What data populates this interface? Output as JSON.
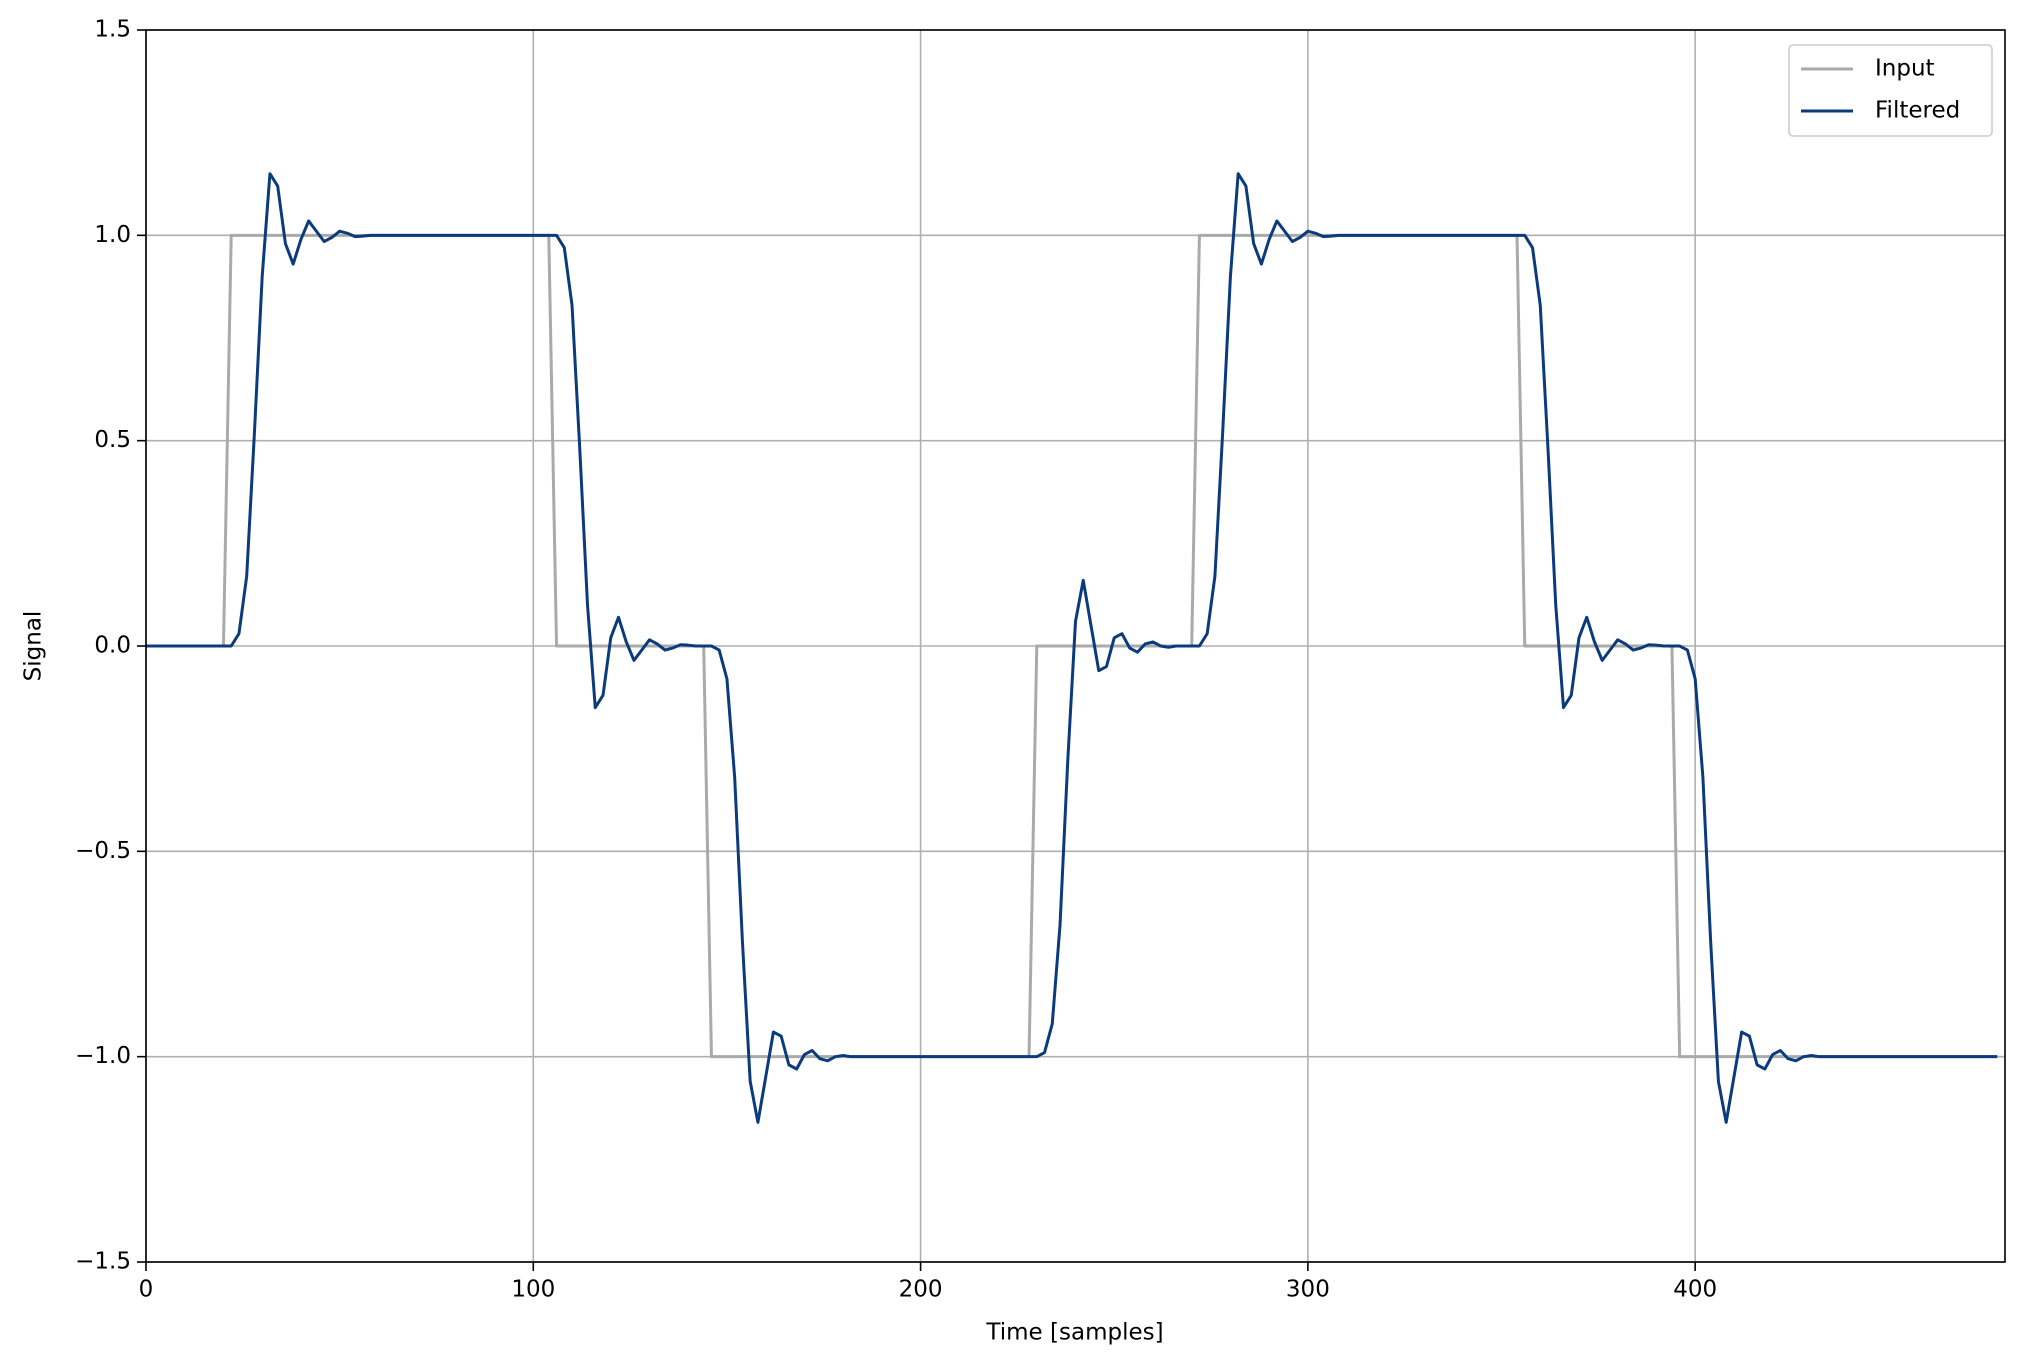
{
  "chart_data": {
    "type": "line",
    "xlabel": "Time [samples]",
    "ylabel": "Signal",
    "xlim": [
      0,
      480
    ],
    "xticks": [
      0,
      100,
      200,
      300,
      400
    ],
    "ylim": [
      -1.5,
      1.5
    ],
    "yticks": [
      {
        "value": -1.5,
        "label": "−1.5"
      },
      {
        "value": -1,
        "label": "−1.0"
      },
      {
        "value": -0.5,
        "label": "−0.5"
      },
      {
        "value": 0,
        "label": "0.0"
      },
      0.5,
      {
        "value": 1,
        "label": "1.0"
      },
      1.5
    ],
    "grid": true,
    "legend": "upper-right",
    "x": [
      0,
      2,
      4,
      6,
      8,
      10,
      12,
      14,
      16,
      18,
      20,
      22,
      24,
      26,
      28,
      30,
      32,
      34,
      36,
      38,
      40,
      42,
      44,
      46,
      48,
      50,
      52,
      54,
      56,
      58,
      60,
      62,
      64,
      66,
      68,
      70,
      72,
      74,
      76,
      78,
      80,
      82,
      84,
      86,
      88,
      90,
      92,
      94,
      96,
      98,
      100,
      102,
      104,
      106,
      108,
      110,
      112,
      114,
      116,
      118,
      120,
      122,
      124,
      126,
      128,
      130,
      132,
      134,
      136,
      138,
      140,
      142,
      144,
      146,
      148,
      150,
      152,
      154,
      156,
      158,
      160,
      162,
      164,
      166,
      168,
      170,
      172,
      174,
      176,
      178,
      180,
      182,
      184,
      186,
      188,
      190,
      192,
      194,
      196,
      198,
      200,
      202,
      204,
      206,
      208,
      210,
      212,
      214,
      216,
      218,
      220,
      222,
      224,
      226,
      228,
      230,
      232,
      234,
      236,
      238,
      240,
      242,
      244,
      246,
      248,
      250,
      252,
      254,
      256,
      258,
      260,
      262,
      264,
      266,
      268,
      270,
      272,
      274,
      276,
      278,
      280,
      282,
      284,
      286,
      288,
      290,
      292,
      294,
      296,
      298,
      300,
      302,
      304,
      306,
      308,
      310,
      312,
      314,
      316,
      318,
      320,
      322,
      324,
      326,
      328,
      330,
      332,
      334,
      336,
      338,
      340,
      342,
      344,
      346,
      348,
      350,
      352,
      354,
      356,
      358,
      360,
      362,
      364,
      366,
      368,
      370,
      372,
      374,
      376,
      378,
      380,
      382,
      384,
      386,
      388,
      390,
      392,
      394,
      396,
      398,
      400,
      402,
      404,
      406,
      408,
      410,
      412,
      414,
      416,
      418,
      420,
      422,
      424,
      426,
      428,
      430,
      432,
      434,
      436,
      438,
      440,
      442,
      444,
      446,
      448,
      450,
      452,
      454,
      456,
      458,
      460,
      462,
      464,
      466,
      468,
      470,
      472,
      474,
      476,
      478
    ],
    "series": [
      {
        "name": "Input",
        "color": "#aaaaaa",
        "values": [
          0,
          0,
          0,
          0,
          0,
          0,
          0,
          0,
          0,
          0,
          0,
          1,
          1,
          1,
          1,
          1,
          1,
          1,
          1,
          1,
          1,
          1,
          1,
          1,
          1,
          1,
          1,
          1,
          1,
          1,
          1,
          1,
          1,
          1,
          1,
          1,
          1,
          1,
          1,
          1,
          1,
          1,
          1,
          1,
          1,
          1,
          1,
          1,
          1,
          1,
          1,
          1,
          1,
          0,
          0,
          0,
          0,
          0,
          0,
          0,
          0,
          0,
          0,
          0,
          0,
          0,
          0,
          0,
          0,
          0,
          0,
          0,
          0,
          -1,
          -1,
          -1,
          -1,
          -1,
          -1,
          -1,
          -1,
          -1,
          -1,
          -1,
          -1,
          -1,
          -1,
          -1,
          -1,
          -1,
          -1,
          -1,
          -1,
          -1,
          -1,
          -1,
          -1,
          -1,
          -1,
          -1,
          -1,
          -1,
          -1,
          -1,
          -1,
          -1,
          -1,
          -1,
          -1,
          -1,
          -1,
          -1,
          -1,
          -1,
          -1,
          0,
          0,
          0,
          0,
          0,
          0,
          0,
          0,
          0,
          0,
          0,
          0,
          0,
          0,
          0,
          0,
          0,
          0,
          0,
          0,
          0,
          1,
          1,
          1,
          1,
          1,
          1,
          1,
          1,
          1,
          1,
          1,
          1,
          1,
          1,
          1,
          1,
          1,
          1,
          1,
          1,
          1,
          1,
          1,
          1,
          1,
          1,
          1,
          1,
          1,
          1,
          1,
          1,
          1,
          1,
          1,
          1,
          1,
          1,
          1,
          1,
          1,
          1,
          0,
          0,
          0,
          0,
          0,
          0,
          0,
          0,
          0,
          0,
          0,
          0,
          0,
          0,
          0,
          0,
          0,
          0,
          0,
          0,
          -1,
          -1,
          -1,
          -1,
          -1,
          -1,
          -1,
          -1,
          -1,
          -1,
          -1,
          -1,
          -1,
          -1,
          -1,
          -1,
          -1,
          -1,
          -1,
          -1,
          -1,
          -1,
          -1,
          -1,
          -1,
          -1,
          -1,
          -1,
          -1,
          -1,
          -1,
          -1,
          -1,
          -1,
          -1,
          -1,
          -1,
          -1,
          -1,
          -1,
          -1,
          -1
        ]
      },
      {
        "name": "Filtered",
        "color": "#0b3b7c",
        "values": [
          0,
          0,
          0,
          0,
          0,
          0,
          0,
          0,
          0,
          0,
          0,
          0,
          0.03,
          0.17,
          0.52,
          0.9,
          1.15,
          1.12,
          0.98,
          0.93,
          0.99,
          1.035,
          1.01,
          0.985,
          0.995,
          1.01,
          1.005,
          0.997,
          0.998,
          1,
          1,
          1,
          1,
          1,
          1,
          1,
          1,
          1,
          1,
          1,
          1,
          1,
          1,
          1,
          1,
          1,
          1,
          1,
          1,
          1,
          1,
          1,
          1,
          1,
          0.97,
          0.83,
          0.48,
          0.1,
          -0.15,
          -0.12,
          0.02,
          0.07,
          0.01,
          -0.035,
          -0.01,
          0.015,
          0.005,
          -0.01,
          -0.005,
          0.003,
          0.002,
          0,
          0,
          0,
          -0.01,
          -0.08,
          -0.32,
          -0.72,
          -1.06,
          -1.16,
          -1.05,
          -0.94,
          -0.95,
          -1.02,
          -1.03,
          -0.995,
          -0.985,
          -1.005,
          -1.01,
          -1,
          -0.997,
          -1,
          -1,
          -1,
          -1,
          -1,
          -1,
          -1,
          -1,
          -1,
          -1,
          -1,
          -1,
          -1,
          -1,
          -1,
          -1,
          -1,
          -1,
          -1,
          -1,
          -1,
          -1,
          -1,
          -1,
          -1,
          -0.99,
          -0.92,
          -0.68,
          -0.28,
          0.06,
          0.16,
          0.05,
          -0.06,
          -0.05,
          0.02,
          0.03,
          -0.005,
          -0.015,
          0.005,
          0.01,
          0,
          -0.003,
          0,
          0,
          0,
          0,
          0.03,
          0.17,
          0.52,
          0.9,
          1.15,
          1.12,
          0.98,
          0.93,
          0.99,
          1.035,
          1.01,
          0.985,
          0.995,
          1.01,
          1.005,
          0.997,
          0.998,
          1,
          1,
          1,
          1,
          1,
          1,
          1,
          1,
          1,
          1,
          1,
          1,
          1,
          1,
          1,
          1,
          1,
          1,
          1,
          1,
          1,
          1,
          1,
          1,
          1,
          0.97,
          0.83,
          0.48,
          0.1,
          -0.15,
          -0.12,
          0.02,
          0.07,
          0.01,
          -0.035,
          -0.01,
          0.015,
          0.005,
          -0.01,
          -0.005,
          0.003,
          0.002,
          0,
          0,
          0,
          -0.01,
          -0.08,
          -0.32,
          -0.72,
          -1.06,
          -1.16,
          -1.05,
          -0.94,
          -0.95,
          -1.02,
          -1.03,
          -0.995,
          -0.985,
          -1.005,
          -1.01,
          -1,
          -0.997,
          -1,
          -1,
          -1,
          -1,
          -1,
          -1,
          -1,
          -1,
          -1,
          -1,
          -1,
          -1,
          -1,
          -1,
          -1,
          -1,
          -1,
          -1,
          -1,
          -1,
          -1,
          -1,
          -1,
          -1
        ]
      }
    ]
  }
}
